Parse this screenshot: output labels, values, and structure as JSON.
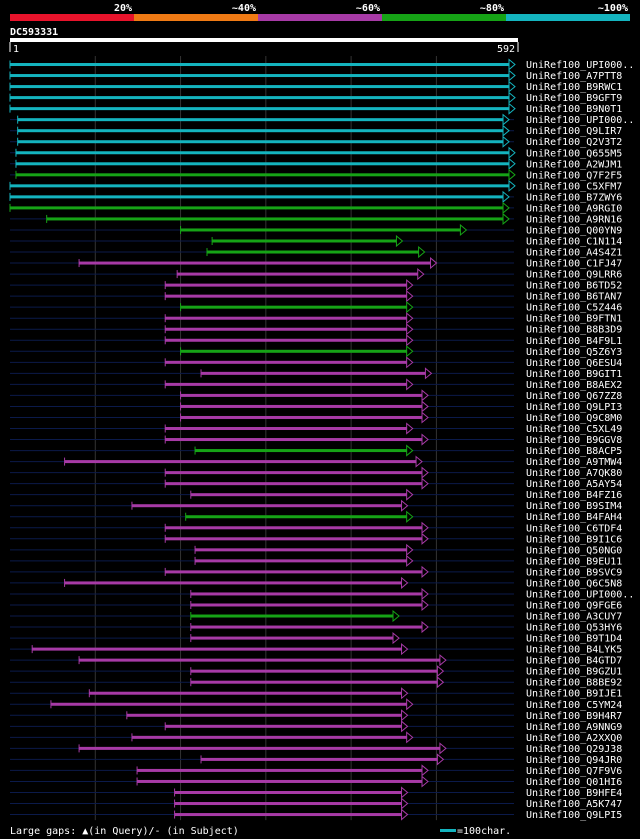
{
  "chart_data": {
    "type": "alignment-overview",
    "query_name": "DC593331",
    "ruler": {
      "start": "1",
      "end": "592"
    },
    "identity_legend": [
      {
        "label": "20%",
        "color": "#e8132b"
      },
      {
        "label": "~40%",
        "color": "#ef7a14"
      },
      {
        "label": "~60%",
        "color": "#a73aa6"
      },
      {
        "label": "~80%",
        "color": "#16a316"
      },
      {
        "label": "~100%",
        "color": "#14b4bf"
      }
    ],
    "hits": [
      {
        "name": "UniRef100_UPI000..",
        "start": 1,
        "end": 592,
        "tier": "~100%"
      },
      {
        "name": "UniRef100_A7PTT8",
        "start": 1,
        "end": 592,
        "tier": "~100%"
      },
      {
        "name": "UniRef100_B9RWC1",
        "start": 1,
        "end": 592,
        "tier": "~100%"
      },
      {
        "name": "UniRef100_B9GFT9",
        "start": 1,
        "end": 592,
        "tier": "~100%"
      },
      {
        "name": "UniRef100_B9N0T1",
        "start": 1,
        "end": 592,
        "tier": "~100%"
      },
      {
        "name": "UniRef100_UPI000..",
        "start": 10,
        "end": 585,
        "tier": "~100%"
      },
      {
        "name": "UniRef100_Q9LIR7",
        "start": 10,
        "end": 585,
        "tier": "~100%"
      },
      {
        "name": "UniRef100_Q2V3T2",
        "start": 10,
        "end": 585,
        "tier": "~100%"
      },
      {
        "name": "UniRef100_Q655M5",
        "start": 8,
        "end": 592,
        "tier": "~100%"
      },
      {
        "name": "UniRef100_A2WJM1",
        "start": 8,
        "end": 592,
        "tier": "~100%"
      },
      {
        "name": "UniRef100_Q7F2F5",
        "start": 8,
        "end": 592,
        "tier": "~80%"
      },
      {
        "name": "UniRef100_C5XFM7",
        "start": 1,
        "end": 592,
        "tier": "~100%"
      },
      {
        "name": "UniRef100_B7ZWY6",
        "start": 1,
        "end": 585,
        "tier": "~100%"
      },
      {
        "name": "UniRef100_A9RGI0",
        "start": 1,
        "end": 585,
        "tier": "~80%"
      },
      {
        "name": "UniRef100_A9RN16",
        "start": 44,
        "end": 585,
        "tier": "~80%"
      },
      {
        "name": "UniRef100_Q00YN9",
        "start": 201,
        "end": 535,
        "tier": "~80%"
      },
      {
        "name": "UniRef100_C1N114",
        "start": 238,
        "end": 460,
        "tier": "~80%"
      },
      {
        "name": "UniRef100_A4S4Z1",
        "start": 232,
        "end": 486,
        "tier": "~80%"
      },
      {
        "name": "UniRef100_C1FJ47",
        "start": 82,
        "end": 500,
        "tier": "~60%"
      },
      {
        "name": "UniRef100_Q9LRR6",
        "start": 197,
        "end": 485,
        "tier": "~60%"
      },
      {
        "name": "UniRef100_B6TD52",
        "start": 183,
        "end": 472,
        "tier": "~60%"
      },
      {
        "name": "UniRef100_B6TAN7",
        "start": 183,
        "end": 472,
        "tier": "~60%"
      },
      {
        "name": "UniRef100_C5Z446",
        "start": 201,
        "end": 472,
        "tier": "~80%"
      },
      {
        "name": "UniRef100_B9FTN1",
        "start": 183,
        "end": 472,
        "tier": "~60%"
      },
      {
        "name": "UniRef100_B8B3D9",
        "start": 183,
        "end": 472,
        "tier": "~60%"
      },
      {
        "name": "UniRef100_B4F9L1",
        "start": 183,
        "end": 472,
        "tier": "~60%"
      },
      {
        "name": "UniRef100_Q5Z6Y3",
        "start": 201,
        "end": 472,
        "tier": "~80%"
      },
      {
        "name": "UniRef100_Q6ESU4",
        "start": 183,
        "end": 472,
        "tier": "~60%"
      },
      {
        "name": "UniRef100_B9GIT1",
        "start": 225,
        "end": 494,
        "tier": "~60%"
      },
      {
        "name": "UniRef100_B8AEX2",
        "start": 183,
        "end": 472,
        "tier": "~60%"
      },
      {
        "name": "UniRef100_Q67ZZ8",
        "start": 201,
        "end": 490,
        "tier": "~60%"
      },
      {
        "name": "UniRef100_Q9LPI3",
        "start": 201,
        "end": 490,
        "tier": "~60%"
      },
      {
        "name": "UniRef100_Q9C8M0",
        "start": 201,
        "end": 490,
        "tier": "~60%"
      },
      {
        "name": "UniRef100_C5XL49",
        "start": 183,
        "end": 472,
        "tier": "~60%"
      },
      {
        "name": "UniRef100_B9GGV8",
        "start": 183,
        "end": 490,
        "tier": "~60%"
      },
      {
        "name": "UniRef100_B8ACP5",
        "start": 218,
        "end": 472,
        "tier": "~80%"
      },
      {
        "name": "UniRef100_A9TMW4",
        "start": 65,
        "end": 483,
        "tier": "~60%"
      },
      {
        "name": "UniRef100_A7QK80",
        "start": 183,
        "end": 490,
        "tier": "~60%"
      },
      {
        "name": "UniRef100_A5AY54",
        "start": 183,
        "end": 490,
        "tier": "~60%"
      },
      {
        "name": "UniRef100_B4FZ16",
        "start": 213,
        "end": 472,
        "tier": "~60%"
      },
      {
        "name": "UniRef100_B9SIM4",
        "start": 144,
        "end": 466,
        "tier": "~60%"
      },
      {
        "name": "UniRef100_B4FAH4",
        "start": 207,
        "end": 472,
        "tier": "~80%"
      },
      {
        "name": "UniRef100_C6TDF4",
        "start": 183,
        "end": 490,
        "tier": "~60%"
      },
      {
        "name": "UniRef100_B9I1C6",
        "start": 183,
        "end": 490,
        "tier": "~60%"
      },
      {
        "name": "UniRef100_Q50NG0",
        "start": 218,
        "end": 472,
        "tier": "~60%"
      },
      {
        "name": "UniRef100_B9EU11",
        "start": 218,
        "end": 472,
        "tier": "~60%"
      },
      {
        "name": "UniRef100_B9SVC9",
        "start": 183,
        "end": 490,
        "tier": "~60%"
      },
      {
        "name": "UniRef100_Q6C5N8",
        "start": 65,
        "end": 466,
        "tier": "~60%"
      },
      {
        "name": "UniRef100_UPI000..",
        "start": 213,
        "end": 490,
        "tier": "~60%"
      },
      {
        "name": "UniRef100_Q9FGE6",
        "start": 213,
        "end": 490,
        "tier": "~60%"
      },
      {
        "name": "UniRef100_A3CUY7",
        "start": 213,
        "end": 456,
        "tier": "~80%"
      },
      {
        "name": "UniRef100_Q53HY6",
        "start": 213,
        "end": 490,
        "tier": "~60%"
      },
      {
        "name": "UniRef100_B9T1D4",
        "start": 213,
        "end": 456,
        "tier": "~60%"
      },
      {
        "name": "UniRef100_B4LYK5",
        "start": 27,
        "end": 466,
        "tier": "~60%"
      },
      {
        "name": "UniRef100_B4GTD7",
        "start": 82,
        "end": 511,
        "tier": "~60%"
      },
      {
        "name": "UniRef100_B9GZU1",
        "start": 213,
        "end": 508,
        "tier": "~60%"
      },
      {
        "name": "UniRef100_B8BE92",
        "start": 213,
        "end": 508,
        "tier": "~60%"
      },
      {
        "name": "UniRef100_B9IJE1",
        "start": 94,
        "end": 466,
        "tier": "~60%"
      },
      {
        "name": "UniRef100_C5YM24",
        "start": 49,
        "end": 472,
        "tier": "~60%"
      },
      {
        "name": "UniRef100_B9H4R7",
        "start": 138,
        "end": 466,
        "tier": "~60%"
      },
      {
        "name": "UniRef100_A9NNG9",
        "start": 183,
        "end": 466,
        "tier": "~60%"
      },
      {
        "name": "UniRef100_A2XXQ0",
        "start": 144,
        "end": 472,
        "tier": "~60%"
      },
      {
        "name": "UniRef100_Q29J38",
        "start": 82,
        "end": 511,
        "tier": "~60%"
      },
      {
        "name": "UniRef100_Q94JR0",
        "start": 225,
        "end": 508,
        "tier": "~60%"
      },
      {
        "name": "UniRef100_Q7F9V6",
        "start": 150,
        "end": 490,
        "tier": "~60%"
      },
      {
        "name": "UniRef100_Q01HI6",
        "start": 150,
        "end": 490,
        "tier": "~60%"
      },
      {
        "name": "UniRef100_B9HFE4",
        "start": 194,
        "end": 466,
        "tier": "~60%"
      },
      {
        "name": "UniRef100_A5K747",
        "start": 194,
        "end": 466,
        "tier": "~60%"
      },
      {
        "name": "UniRef100_Q9LPI5",
        "start": 194,
        "end": 466,
        "tier": "~60%"
      }
    ],
    "gap_legend": "Large gaps: ▲(in Query)/- (in Subject)",
    "scale_legend": "=100char."
  }
}
